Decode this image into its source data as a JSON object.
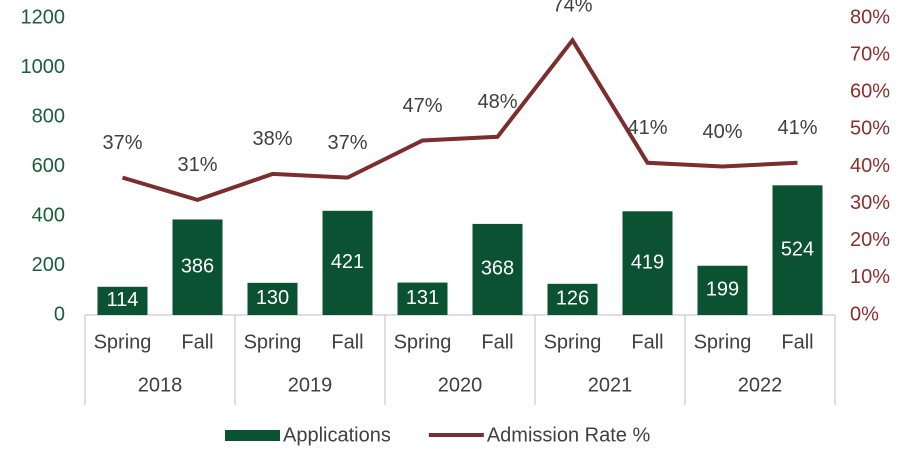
{
  "chart_data": {
    "type": "bar-line",
    "categories": [
      "Spring",
      "Fall",
      "Spring",
      "Fall",
      "Spring",
      "Fall",
      "Spring",
      "Fall",
      "Spring",
      "Fall"
    ],
    "category_groups": [
      "2018",
      "2019",
      "2020",
      "2021",
      "2022"
    ],
    "series": [
      {
        "name": "Applications",
        "type": "bar",
        "color": "#0a5232",
        "values": [
          114,
          386,
          130,
          421,
          131,
          368,
          126,
          419,
          199,
          524
        ]
      },
      {
        "name": "Admission Rate %",
        "type": "line",
        "axis": "y2",
        "color": "#7a2e2e",
        "values": [
          37,
          31,
          38,
          37,
          47,
          48,
          74,
          41,
          40,
          41
        ],
        "value_labels": [
          "37%",
          "31%",
          "38%",
          "37%",
          "47%",
          "48%",
          "74%",
          "41%",
          "40%",
          "41%"
        ]
      }
    ],
    "ylim": [
      0,
      1200
    ],
    "yticks": [
      0,
      200,
      400,
      600,
      800,
      1000,
      1200
    ],
    "y2lim": [
      0,
      80
    ],
    "y2ticks": [
      {
        "value": 0,
        "label": "0%"
      },
      {
        "value": 10,
        "label": "10%"
      },
      {
        "value": 20,
        "label": "20%"
      },
      {
        "value": 30,
        "label": "30%"
      },
      {
        "value": 40,
        "label": "40%"
      },
      {
        "value": 50,
        "label": "50%"
      },
      {
        "value": 60,
        "label": "60%"
      },
      {
        "value": 70,
        "label": "70%"
      },
      {
        "value": 80,
        "label": "80%"
      }
    ],
    "legend": "bottom"
  }
}
